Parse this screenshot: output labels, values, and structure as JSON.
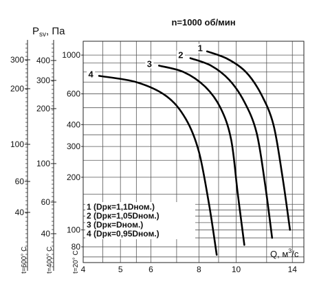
{
  "chart_data": {
    "type": "line",
    "title": "n=1000 об/мин",
    "ylabel_main": "Psv, Па",
    "ylabel_prefix": "P",
    "ylabel_sub": "sv",
    "ylabel_suffix": ", Па",
    "xlabel_prefix": "Q, м",
    "xlabel_sup": "3",
    "xlabel_suffix": "/с",
    "x_axis": {
      "scale": "log",
      "ticks": [
        4,
        5,
        6,
        8,
        10,
        14
      ],
      "tick_labels": [
        "4",
        "5",
        "6",
        "8",
        "10",
        "14"
      ],
      "xlim": [
        4,
        15
      ]
    },
    "y_axis_inner": {
      "scale": "log",
      "ticks": [
        80,
        100,
        200,
        300,
        400,
        600,
        1000
      ],
      "tick_labels": [
        "80",
        "100",
        "200",
        "300",
        "400",
        "600",
        "1000"
      ],
      "ylim": [
        65,
        1200
      ]
    },
    "y_axis_mid": {
      "ticks": [
        40,
        60,
        100,
        200,
        300,
        400
      ],
      "tick_labels": [
        "40",
        "60",
        "100",
        "200",
        "300",
        "400"
      ],
      "caption": "t=400° C"
    },
    "y_axis_outer": {
      "ticks": [
        40,
        60,
        100,
        200,
        300
      ],
      "tick_labels": [
        "40",
        "60",
        "100",
        "200",
        "300"
      ],
      "caption": "t=600° C"
    },
    "y_axis_inner_caption": "t=20° C",
    "grid": true,
    "legend_position": "bottom-left",
    "series": [
      {
        "name": "1 (Dрк=1,1Dном.)",
        "label": "1",
        "x": [
          8.4,
          9.5,
          10.6,
          11.6,
          12.5,
          13.2,
          13.8
        ],
        "y": [
          1050,
          950,
          800,
          600,
          400,
          200,
          100
        ]
      },
      {
        "name": "2 (Dрк=1,05Dном.)",
        "label": "2",
        "x": [
          7.6,
          8.6,
          9.6,
          10.5,
          11.3,
          11.9,
          12.4
        ],
        "y": [
          960,
          870,
          720,
          540,
          360,
          180,
          90
        ]
      },
      {
        "name": "3 (Dрк=Dном.)",
        "label": "3",
        "x": [
          6.3,
          7.3,
          8.3,
          9.1,
          9.7,
          10.1,
          10.5
        ],
        "y": [
          870,
          800,
          660,
          500,
          330,
          160,
          82
        ]
      },
      {
        "name": "4 (Dрк=0,95Dном.)",
        "label": "4",
        "x": [
          4.4,
          5.5,
          6.6,
          7.4,
          8.0,
          8.5,
          8.9
        ],
        "y": [
          760,
          700,
          580,
          430,
          280,
          140,
          72
        ]
      }
    ]
  }
}
